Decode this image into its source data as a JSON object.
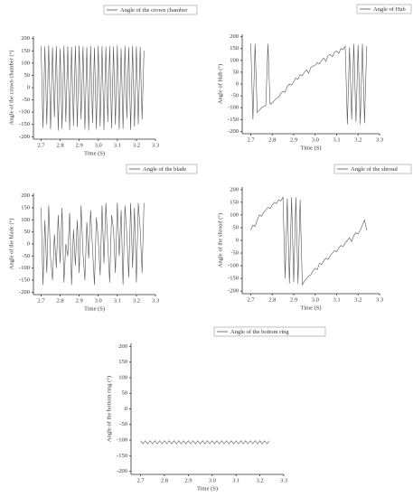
{
  "chart_data": [
    {
      "type": "line",
      "xlabel": "Time (S)",
      "ylabel": "Angle of the crown chamber (°)",
      "x": [
        2.7,
        2.71,
        2.72,
        2.73,
        2.74,
        2.75,
        2.76,
        2.77,
        2.78,
        2.79,
        2.8,
        2.81,
        2.82,
        2.83,
        2.84,
        2.85,
        2.86,
        2.87,
        2.88,
        2.89,
        2.9,
        2.91,
        2.92,
        2.93,
        2.94,
        2.95,
        2.96,
        2.97,
        2.98,
        2.99,
        3,
        3.01,
        3.02,
        3.03,
        3.04,
        3.05,
        3.06,
        3.07,
        3.08,
        3.09,
        3.1,
        3.11,
        3.12,
        3.13,
        3.14,
        3.15,
        3.16,
        3.17,
        3.18,
        3.19,
        3.2,
        3.21,
        3.22,
        3.23,
        3.24
      ],
      "series": [
        {
          "name": "Angle of the crown chamber",
          "color": "#555555",
          "values": [
            170,
            -165,
            168,
            -150,
            172,
            -170,
            165,
            -120,
            170,
            -175,
            160,
            -168,
            171,
            -140,
            169,
            -172,
            166,
            -155,
            170,
            -160,
            172,
            -130,
            168,
            -170,
            165,
            -175,
            170,
            -145,
            163,
            -168,
            171,
            -158,
            169,
            -172,
            167,
            -140,
            170,
            -165,
            168,
            -150,
            172,
            -170,
            160,
            -168,
            171,
            -125,
            165,
            -172,
            170,
            -160,
            168,
            -150,
            166,
            -130,
            150
          ]
        }
      ],
      "xlim": [
        2.66,
        3.3
      ],
      "ylim": [
        -210,
        210
      ],
      "xticks": [
        2.7,
        2.8,
        2.9,
        {
          "value": 3,
          "label": "3.0"
        },
        3.1,
        3.2,
        3.3
      ],
      "yticks": [
        -200,
        -150,
        -100,
        -50,
        0,
        50,
        100,
        150,
        200
      ]
    },
    {
      "type": "line",
      "xlabel": "Time (S)",
      "ylabel": "Angle of Hub (°)",
      "x": [
        2.7,
        2.71,
        2.72,
        2.73,
        2.74,
        2.75,
        2.76,
        2.77,
        2.78,
        2.79,
        2.8,
        2.81,
        2.82,
        2.83,
        2.84,
        2.85,
        2.86,
        2.87,
        2.88,
        2.89,
        2.9,
        2.91,
        2.92,
        2.93,
        2.94,
        2.95,
        2.96,
        2.97,
        2.98,
        2.99,
        3,
        3.01,
        3.02,
        3.03,
        3.04,
        3.05,
        3.06,
        3.07,
        3.08,
        3.09,
        3.1,
        3.11,
        3.12,
        3.13,
        3.14,
        3.15,
        3.16,
        3.17,
        3.18,
        3.19,
        3.2,
        3.21,
        3.22,
        3.23,
        3.24
      ],
      "series": [
        {
          "name": "Angle of Hub",
          "color": "#555555",
          "values": [
            170,
            -150,
            170,
            -120,
            -110,
            -100,
            -95,
            -90,
            170,
            -85,
            -80,
            -70,
            -60,
            -55,
            -40,
            -30,
            -35,
            -10,
            0,
            -5,
            10,
            25,
            20,
            40,
            35,
            50,
            60,
            45,
            70,
            75,
            80,
            90,
            85,
            100,
            110,
            95,
            120,
            125,
            115,
            135,
            140,
            130,
            150,
            145,
            160,
            -170,
            155,
            -150,
            170,
            -160,
            165,
            -170,
            170,
            -165,
            160
          ]
        }
      ],
      "xlim": [
        2.66,
        3.3
      ],
      "ylim": [
        -210,
        210
      ],
      "xticks": [
        2.7,
        2.8,
        2.9,
        {
          "value": 3,
          "label": "3.0"
        },
        3.1,
        3.2,
        3.3
      ],
      "yticks": [
        -200,
        -150,
        -100,
        -50,
        0,
        50,
        100,
        150,
        200
      ]
    },
    {
      "type": "line",
      "xlabel": "Time (S)",
      "ylabel": "Angle of the blade (°)",
      "x": [
        2.7,
        2.71,
        2.72,
        2.73,
        2.74,
        2.75,
        2.76,
        2.77,
        2.78,
        2.79,
        2.8,
        2.81,
        2.82,
        2.83,
        2.84,
        2.85,
        2.86,
        2.87,
        2.88,
        2.89,
        2.9,
        2.91,
        2.92,
        2.93,
        2.94,
        2.95,
        2.96,
        2.97,
        2.98,
        2.99,
        3,
        3.01,
        3.02,
        3.03,
        3.04,
        3.05,
        3.06,
        3.07,
        3.08,
        3.09,
        3.1,
        3.11,
        3.12,
        3.13,
        3.14,
        3.15,
        3.16,
        3.17,
        3.18,
        3.19,
        3.2,
        3.21,
        3.22,
        3.23,
        3.24
      ],
      "series": [
        {
          "name": "Angle of the blade",
          "color": "#555555",
          "values": [
            150,
            -170,
            100,
            -120,
            160,
            -60,
            -150,
            40,
            -100,
            120,
            -80,
            150,
            -160,
            0,
            -50,
            130,
            -170,
            60,
            -90,
            100,
            -120,
            160,
            -40,
            -150,
            90,
            -60,
            140,
            -20,
            -170,
            110,
            20,
            -130,
            160,
            -80,
            170,
            0,
            -160,
            120,
            60,
            -120,
            170,
            -50,
            140,
            -170,
            160,
            40,
            -140,
            170,
            -100,
            150,
            -160,
            170,
            60,
            -120,
            170
          ]
        }
      ],
      "xlim": [
        2.66,
        3.3
      ],
      "ylim": [
        -210,
        210
      ],
      "xticks": [
        2.7,
        2.8,
        2.9,
        {
          "value": 3,
          "label": "3.0"
        },
        3.1,
        3.2,
        3.3
      ],
      "yticks": [
        -200,
        -150,
        -100,
        -50,
        0,
        50,
        100,
        150,
        200
      ]
    },
    {
      "type": "line",
      "xlabel": "Time (S)",
      "ylabel": "Angle of the shroud (°)",
      "x": [
        2.7,
        2.71,
        2.72,
        2.73,
        2.74,
        2.75,
        2.76,
        2.77,
        2.78,
        2.79,
        2.8,
        2.81,
        2.82,
        2.83,
        2.84,
        2.85,
        2.86,
        2.87,
        2.88,
        2.89,
        2.9,
        2.91,
        2.92,
        2.93,
        2.94,
        2.95,
        2.96,
        2.97,
        2.98,
        2.99,
        3,
        3.01,
        3.02,
        3.03,
        3.04,
        3.05,
        3.06,
        3.07,
        3.08,
        3.09,
        3.1,
        3.11,
        3.12,
        3.13,
        3.14,
        3.15,
        3.16,
        3.17,
        3.18,
        3.19,
        3.2,
        3.21,
        3.22,
        3.23,
        3.24
      ],
      "series": [
        {
          "name": "Angle of the shroud",
          "color": "#555555",
          "values": [
            40,
            60,
            55,
            80,
            100,
            95,
            110,
            120,
            130,
            125,
            140,
            150,
            145,
            160,
            155,
            170,
            -150,
            165,
            -170,
            170,
            -165,
            170,
            -170,
            160,
            -175,
            -160,
            -150,
            -140,
            -135,
            -120,
            -110,
            -115,
            -90,
            -95,
            -80,
            -70,
            -75,
            -60,
            -50,
            -40,
            -45,
            -30,
            -20,
            -25,
            -10,
            0,
            10,
            -5,
            20,
            30,
            25,
            40,
            60,
            80,
            40
          ]
        }
      ],
      "xlim": [
        2.66,
        3.3
      ],
      "ylim": [
        -210,
        210
      ],
      "xticks": [
        2.7,
        2.8,
        2.9,
        {
          "value": 3,
          "label": "3.0"
        },
        3.1,
        3.2,
        3.3
      ],
      "yticks": [
        -200,
        -150,
        -100,
        -50,
        0,
        50,
        100,
        150,
        200
      ]
    },
    {
      "type": "line",
      "xlabel": "Time (S)",
      "ylabel": "Angle of the bottom ring (°)",
      "x": [
        2.7,
        2.71,
        2.72,
        2.73,
        2.74,
        2.75,
        2.76,
        2.77,
        2.78,
        2.79,
        2.8,
        2.81,
        2.82,
        2.83,
        2.84,
        2.85,
        2.86,
        2.87,
        2.88,
        2.89,
        2.9,
        2.91,
        2.92,
        2.93,
        2.94,
        2.95,
        2.96,
        2.97,
        2.98,
        2.99,
        3,
        3.01,
        3.02,
        3.03,
        3.04,
        3.05,
        3.06,
        3.07,
        3.08,
        3.09,
        3.1,
        3.11,
        3.12,
        3.13,
        3.14,
        3.15,
        3.16,
        3.17,
        3.18,
        3.19,
        3.2,
        3.21,
        3.22,
        3.23,
        3.24
      ],
      "series": [
        {
          "name": "Angle of the bottom ring",
          "color": "#555555",
          "values": [
            -102,
            -112,
            -102,
            -112,
            -102,
            -112,
            -102,
            -112,
            -102,
            -112,
            -102,
            -112,
            -102,
            -112,
            -102,
            -112,
            -102,
            -112,
            -102,
            -112,
            -102,
            -112,
            -102,
            -112,
            -102,
            -112,
            -102,
            -112,
            -102,
            -112,
            -102,
            -112,
            -102,
            -112,
            -102,
            -112,
            -102,
            -112,
            -102,
            -112,
            -102,
            -112,
            -102,
            -112,
            -102,
            -112,
            -102,
            -112,
            -102,
            -112,
            -102,
            -112,
            -102,
            -112,
            -102
          ]
        }
      ],
      "xlim": [
        2.66,
        3.3
      ],
      "ylim": [
        -210,
        210
      ],
      "xticks": [
        2.7,
        2.8,
        2.9,
        {
          "value": 3,
          "label": "3.0"
        },
        3.1,
        3.2,
        3.3
      ],
      "yticks": [
        -200,
        -150,
        -100,
        -50,
        0,
        50,
        100,
        150,
        200
      ]
    }
  ]
}
